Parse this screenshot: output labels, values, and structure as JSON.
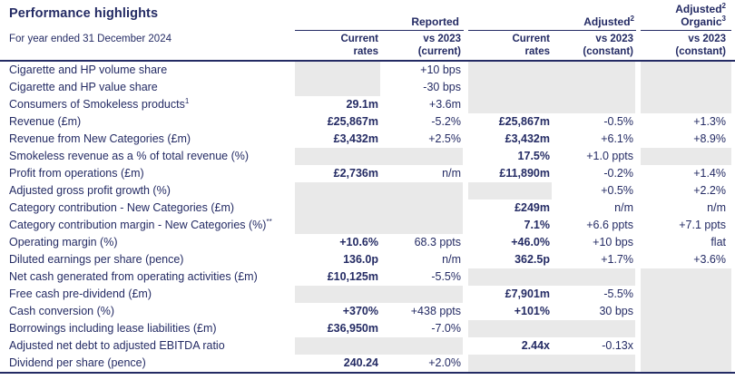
{
  "header": {
    "title": "Performance highlights",
    "subtitle": "For year ended 31 December 2024",
    "group_reported": "Reported",
    "group_adjusted": "Adjusted",
    "group_adjusted_sup": "2",
    "group_organic_line1": "Adjusted",
    "group_organic_line1_sup": "2",
    "group_organic_line2": "Organic",
    "group_organic_line2_sup": "3",
    "columns": {
      "rep_current": {
        "line1": "Current",
        "line2": "rates"
      },
      "rep_vs": {
        "line1": "vs 2023",
        "line2": "(current)"
      },
      "adj_current": {
        "line1": "Current",
        "line2": "rates"
      },
      "adj_vs": {
        "line1": "vs 2023",
        "line2": "(constant)"
      },
      "org_vs": {
        "line1": "vs 2023",
        "line2": "(constant)"
      }
    }
  },
  "colors": {
    "navy_text": "#242b64",
    "shaded_cell": "#e9e9e9",
    "background": "#ffffff"
  },
  "table": {
    "rows": [
      {
        "label": "Cigarette and HP volume share",
        "sup": "",
        "values": [
          "",
          "+10 bps",
          "",
          "",
          ""
        ],
        "shaded": [
          true,
          false,
          true,
          true,
          true
        ]
      },
      {
        "label": "Cigarette and HP value share",
        "sup": "",
        "values": [
          "",
          "-30 bps",
          "",
          "",
          ""
        ],
        "shaded": [
          true,
          false,
          true,
          true,
          true
        ]
      },
      {
        "label": "Consumers of Smokeless products",
        "sup": "1",
        "values": [
          "29.1m",
          "+3.6m",
          "",
          "",
          ""
        ],
        "shaded": [
          false,
          false,
          true,
          true,
          true
        ]
      },
      {
        "label": "Revenue (£m)",
        "sup": "",
        "values": [
          "£25,867m",
          "-5.2%",
          "£25,867m",
          "-0.5%",
          "+1.3%"
        ],
        "shaded": [
          false,
          false,
          false,
          false,
          false
        ]
      },
      {
        "label": "Revenue from New Categories (£m)",
        "sup": "",
        "values": [
          "£3,432m",
          "+2.5%",
          "£3,432m",
          "+6.1%",
          "+8.9%"
        ],
        "shaded": [
          false,
          false,
          false,
          false,
          false
        ]
      },
      {
        "label": "Smokeless revenue as a % of total revenue (%)",
        "sup": "",
        "values": [
          "",
          "",
          "17.5%",
          "+1.0 ppts",
          ""
        ],
        "shaded": [
          true,
          true,
          false,
          false,
          true
        ]
      },
      {
        "label": "Profit from operations (£m)",
        "sup": "",
        "values": [
          "£2,736m",
          "n/m",
          "£11,890m",
          "-0.2%",
          "+1.4%"
        ],
        "shaded": [
          false,
          false,
          false,
          false,
          false
        ]
      },
      {
        "label": "Adjusted gross profit growth (%)",
        "sup": "",
        "values": [
          "",
          "",
          "",
          "+0.5%",
          "+2.2%"
        ],
        "shaded": [
          true,
          true,
          true,
          false,
          false
        ]
      },
      {
        "label": "Category contribution - New Categories (£m)",
        "sup": "",
        "values": [
          "",
          "",
          "£249m",
          "n/m",
          "n/m"
        ],
        "shaded": [
          true,
          true,
          false,
          false,
          false
        ]
      },
      {
        "label": "Category contribution margin - New Categories (%)",
        "sup": "**",
        "values": [
          "",
          "",
          "7.1%",
          "+6.6 ppts",
          "+7.1 ppts"
        ],
        "shaded": [
          true,
          true,
          false,
          false,
          false
        ]
      },
      {
        "label": "Operating margin (%)",
        "sup": "",
        "values": [
          "+10.6%",
          "68.3 ppts",
          "+46.0%",
          "+10 bps",
          "flat"
        ],
        "shaded": [
          false,
          false,
          false,
          false,
          false
        ]
      },
      {
        "label": "Diluted earnings per share (pence)",
        "sup": "",
        "values": [
          "136.0p",
          "n/m",
          "362.5p",
          "+1.7%",
          "+3.6%"
        ],
        "shaded": [
          false,
          false,
          false,
          false,
          false
        ]
      },
      {
        "label": "Net cash generated from operating activities (£m)",
        "sup": "",
        "values": [
          "£10,125m",
          "-5.5%",
          "",
          "",
          ""
        ],
        "shaded": [
          false,
          false,
          true,
          true,
          true
        ]
      },
      {
        "label": "Free cash pre-dividend (£m)",
        "sup": "",
        "values": [
          "",
          "",
          "£7,901m",
          "-5.5%",
          ""
        ],
        "shaded": [
          true,
          true,
          false,
          false,
          true
        ]
      },
      {
        "label": "Cash conversion (%)",
        "sup": "",
        "values": [
          "+370%",
          "+438 ppts",
          "+101%",
          "30 bps",
          ""
        ],
        "shaded": [
          false,
          false,
          false,
          false,
          true
        ]
      },
      {
        "label": "Borrowings including lease liabilities (£m)",
        "sup": "",
        "values": [
          "£36,950m",
          "-7.0%",
          "",
          "",
          ""
        ],
        "shaded": [
          false,
          false,
          true,
          true,
          true
        ]
      },
      {
        "label": "Adjusted net debt to adjusted EBITDA ratio",
        "sup": "",
        "values": [
          "",
          "",
          "2.44x",
          "-0.13x",
          ""
        ],
        "shaded": [
          true,
          true,
          false,
          false,
          true
        ]
      },
      {
        "label": "Dividend per share (pence)",
        "sup": "",
        "values": [
          "240.24",
          "+2.0%",
          "",
          "",
          ""
        ],
        "shaded": [
          false,
          false,
          true,
          true,
          true
        ]
      }
    ]
  }
}
